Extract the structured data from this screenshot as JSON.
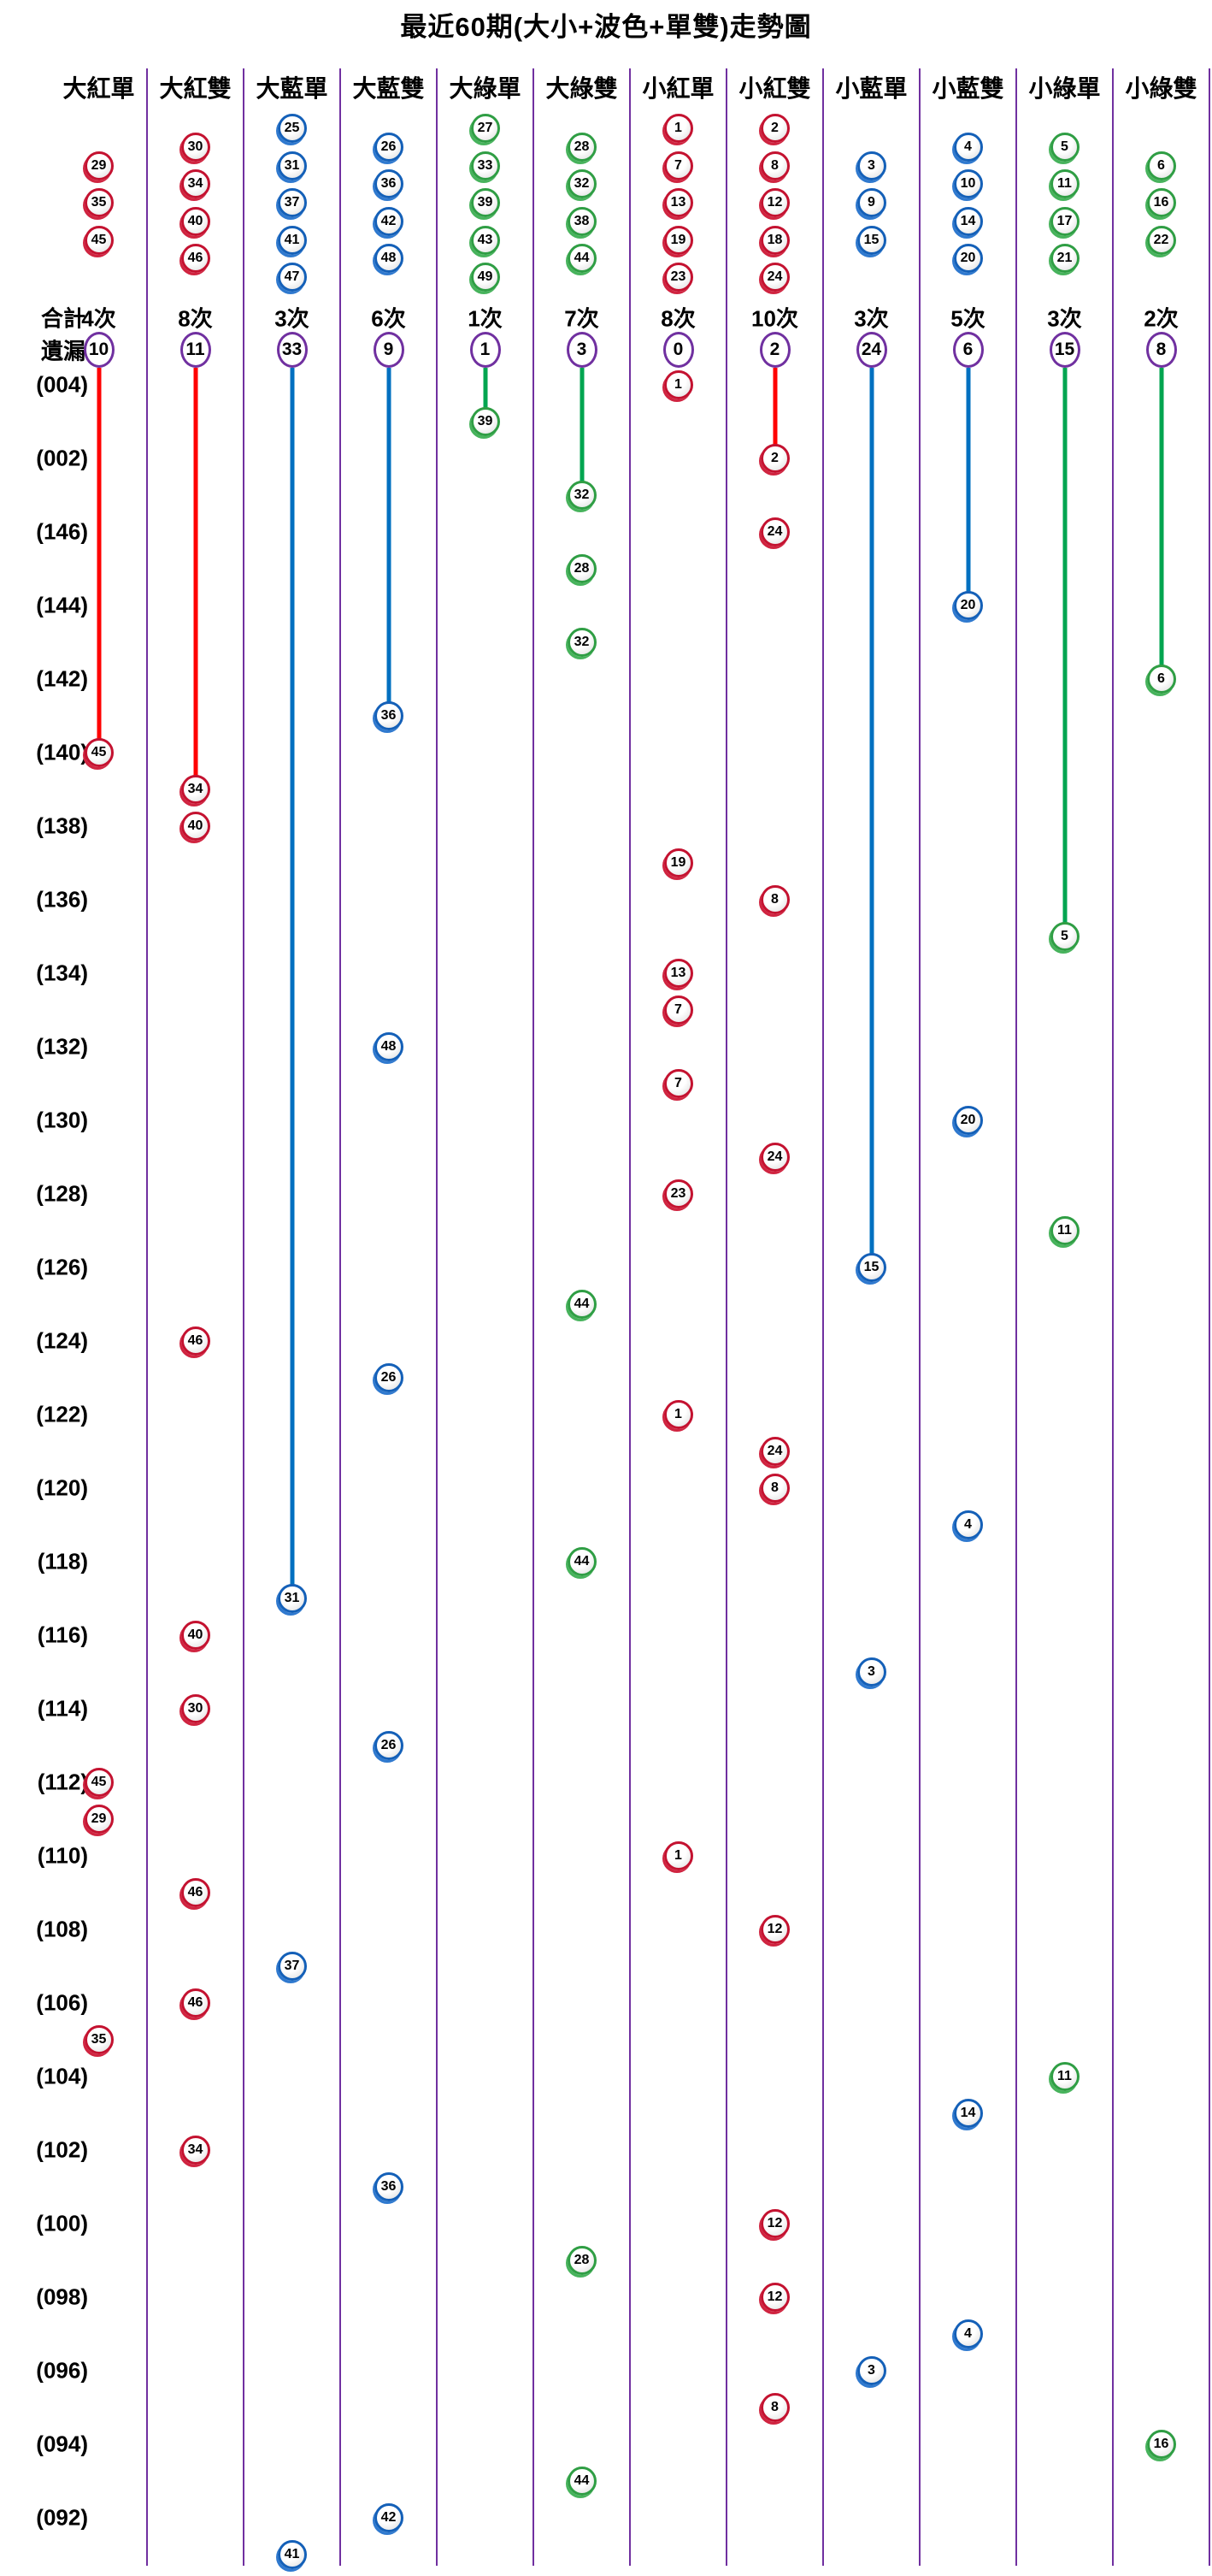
{
  "gutter": {
    "total_label": "合計",
    "miss_label": "遺漏"
  },
  "colors": {
    "red_ball": "#c41230",
    "blue_ball": "#1460b8",
    "green_ball": "#2f9e44",
    "line_red": "#ff0000",
    "line_blue": "#0070c0",
    "line_green": "#00a550",
    "separator": "#7030a0",
    "miss_circle_border": "#7030a0"
  },
  "chart_data": {
    "type": "scatter",
    "title": "最近60期(大小+波色+單雙)走勢圖",
    "legend_position": "top",
    "grid": "vertical-separators",
    "columns": [
      {
        "header": "大紅單",
        "color": "red",
        "legend": [
          29,
          35,
          45
        ],
        "total": "4次",
        "miss": "10",
        "line_end_row": 10
      },
      {
        "header": "大紅雙",
        "color": "red",
        "legend": [
          30,
          34,
          40,
          46
        ],
        "total": "8次",
        "miss": "11",
        "line_end_row": 11
      },
      {
        "header": "大藍單",
        "color": "blue",
        "legend": [
          25,
          31,
          37,
          41,
          47
        ],
        "total": "3次",
        "miss": "33",
        "line_end_row": 33
      },
      {
        "header": "大藍雙",
        "color": "blue",
        "legend": [
          26,
          36,
          42,
          48
        ],
        "total": "6次",
        "miss": "9",
        "line_end_row": 9
      },
      {
        "header": "大綠單",
        "color": "green",
        "legend": [
          27,
          33,
          39,
          43,
          49
        ],
        "total": "1次",
        "miss": "1",
        "line_end_row": 1
      },
      {
        "header": "大綠雙",
        "color": "green",
        "legend": [
          28,
          32,
          38,
          44
        ],
        "total": "7次",
        "miss": "3",
        "line_end_row": 3
      },
      {
        "header": "小紅單",
        "color": "red",
        "legend": [
          1,
          7,
          13,
          19,
          23
        ],
        "total": "8次",
        "miss": "0",
        "line_end_row": null
      },
      {
        "header": "小紅雙",
        "color": "red",
        "legend": [
          2,
          8,
          12,
          18,
          24
        ],
        "total": "10次",
        "miss": "2",
        "line_end_row": 2
      },
      {
        "header": "小藍單",
        "color": "blue",
        "legend": [
          3,
          9,
          15
        ],
        "total": "3次",
        "miss": "24",
        "line_end_row": 24
      },
      {
        "header": "小藍雙",
        "color": "blue",
        "legend": [
          4,
          10,
          14,
          20
        ],
        "total": "5次",
        "miss": "6",
        "line_end_row": 6
      },
      {
        "header": "小綠單",
        "color": "green",
        "legend": [
          5,
          11,
          17,
          21
        ],
        "total": "3次",
        "miss": "15",
        "line_end_row": 15
      },
      {
        "header": "小綠雙",
        "color": "green",
        "legend": [
          6,
          16,
          22
        ],
        "total": "2次",
        "miss": "8",
        "line_end_row": 8
      }
    ],
    "row_labels": [
      "(004)",
      "(002)",
      "(146)",
      "(144)",
      "(142)",
      "(140)",
      "(138)",
      "(136)",
      "(134)",
      "(132)",
      "(130)",
      "(128)",
      "(126)",
      "(124)",
      "(122)",
      "(120)",
      "(118)",
      "(116)",
      "(114)",
      "(112)",
      "(110)",
      "(108)",
      "(106)",
      "(104)",
      "(102)",
      "(100)",
      "(098)",
      "(096)",
      "(094)",
      "(092)"
    ],
    "points": [
      {
        "col": 7,
        "row": 0,
        "n": 1
      },
      {
        "col": 5,
        "row": 1,
        "n": 39
      },
      {
        "col": 8,
        "row": 2,
        "n": 2
      },
      {
        "col": 6,
        "row": 3,
        "n": 32
      },
      {
        "col": 8,
        "row": 4,
        "n": 24
      },
      {
        "col": 6,
        "row": 5,
        "n": 28
      },
      {
        "col": 10,
        "row": 6,
        "n": 20
      },
      {
        "col": 6,
        "row": 7,
        "n": 32
      },
      {
        "col": 12,
        "row": 8,
        "n": 6
      },
      {
        "col": 4,
        "row": 9,
        "n": 36
      },
      {
        "col": 1,
        "row": 10,
        "n": 45
      },
      {
        "col": 2,
        "row": 11,
        "n": 34
      },
      {
        "col": 2,
        "row": 12,
        "n": 40
      },
      {
        "col": 7,
        "row": 13,
        "n": 19
      },
      {
        "col": 8,
        "row": 14,
        "n": 8
      },
      {
        "col": 11,
        "row": 15,
        "n": 5
      },
      {
        "col": 7,
        "row": 16,
        "n": 13
      },
      {
        "col": 7,
        "row": 17,
        "n": 7
      },
      {
        "col": 4,
        "row": 18,
        "n": 48
      },
      {
        "col": 7,
        "row": 19,
        "n": 7
      },
      {
        "col": 10,
        "row": 20,
        "n": 20
      },
      {
        "col": 8,
        "row": 21,
        "n": 24
      },
      {
        "col": 7,
        "row": 22,
        "n": 23
      },
      {
        "col": 11,
        "row": 23,
        "n": 11
      },
      {
        "col": 9,
        "row": 24,
        "n": 15
      },
      {
        "col": 6,
        "row": 25,
        "n": 44
      },
      {
        "col": 2,
        "row": 26,
        "n": 46
      },
      {
        "col": 4,
        "row": 27,
        "n": 26
      },
      {
        "col": 7,
        "row": 28,
        "n": 1
      },
      {
        "col": 8,
        "row": 29,
        "n": 24
      },
      {
        "col": 8,
        "row": 30,
        "n": 8
      },
      {
        "col": 10,
        "row": 31,
        "n": 4
      },
      {
        "col": 6,
        "row": 32,
        "n": 44
      },
      {
        "col": 3,
        "row": 33,
        "n": 31
      },
      {
        "col": 2,
        "row": 34,
        "n": 40
      },
      {
        "col": 9,
        "row": 35,
        "n": 3
      },
      {
        "col": 2,
        "row": 36,
        "n": 30
      },
      {
        "col": 4,
        "row": 37,
        "n": 26
      },
      {
        "col": 1,
        "row": 38,
        "n": 45
      },
      {
        "col": 1,
        "row": 39,
        "n": 29
      },
      {
        "col": 7,
        "row": 40,
        "n": 1
      },
      {
        "col": 2,
        "row": 41,
        "n": 46
      },
      {
        "col": 8,
        "row": 42,
        "n": 12
      },
      {
        "col": 3,
        "row": 43,
        "n": 37
      },
      {
        "col": 2,
        "row": 44,
        "n": 46
      },
      {
        "col": 1,
        "row": 45,
        "n": 35
      },
      {
        "col": 11,
        "row": 46,
        "n": 11
      },
      {
        "col": 10,
        "row": 47,
        "n": 14
      },
      {
        "col": 2,
        "row": 48,
        "n": 34
      },
      {
        "col": 4,
        "row": 49,
        "n": 36
      },
      {
        "col": 8,
        "row": 50,
        "n": 12
      },
      {
        "col": 6,
        "row": 51,
        "n": 28
      },
      {
        "col": 8,
        "row": 52,
        "n": 12
      },
      {
        "col": 10,
        "row": 53,
        "n": 4
      },
      {
        "col": 9,
        "row": 54,
        "n": 3
      },
      {
        "col": 8,
        "row": 55,
        "n": 8
      },
      {
        "col": 12,
        "row": 56,
        "n": 16
      },
      {
        "col": 6,
        "row": 57,
        "n": 44
      },
      {
        "col": 4,
        "row": 58,
        "n": 42
      },
      {
        "col": 3,
        "row": 59,
        "n": 41
      }
    ]
  }
}
